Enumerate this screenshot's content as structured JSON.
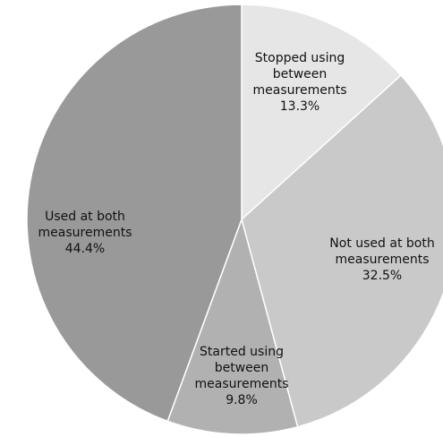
{
  "chart_data": {
    "type": "pie",
    "categories": [
      "Stopped using between measurements",
      "Not used at both measurements",
      "Started using between measurements",
      "Used at both measurements"
    ],
    "values": [
      13.3,
      32.5,
      9.8,
      44.4
    ],
    "value_labels": [
      "13.3%",
      "32.5%",
      "9.8%",
      "44.4%"
    ],
    "colors": [
      "#e6e6e6",
      "#c9c9c9",
      "#b1b1b1",
      "#999999"
    ]
  }
}
